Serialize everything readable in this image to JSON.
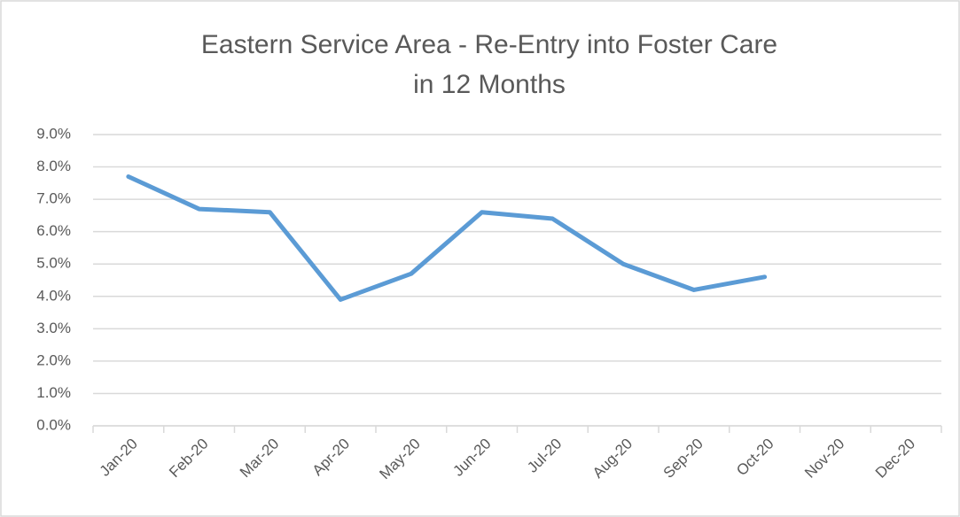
{
  "chart_data": {
    "type": "line",
    "title": [
      "Eastern Service Area - Re-Entry into Foster Care",
      "in 12 Months"
    ],
    "categories": [
      "Jan-20",
      "Feb-20",
      "Mar-20",
      "Apr-20",
      "May-20",
      "Jun-20",
      "Jul-20",
      "Aug-20",
      "Sep-20",
      "Oct-20",
      "Nov-20",
      "Dec-20"
    ],
    "values": [
      7.7,
      6.7,
      6.6,
      3.9,
      4.7,
      6.6,
      6.4,
      5.0,
      4.2,
      4.6,
      null,
      null
    ],
    "color": "#5b9bd5",
    "ylim": [
      0,
      9
    ],
    "yticks": [
      {
        "value": 0,
        "label": "0.0%"
      },
      {
        "value": 1,
        "label": "1.0%"
      },
      {
        "value": 2,
        "label": "2.0%"
      },
      {
        "value": 3,
        "label": "3.0%"
      },
      {
        "value": 4,
        "label": "4.0%"
      },
      {
        "value": 5,
        "label": "5.0%"
      },
      {
        "value": 6,
        "label": "6.0%"
      },
      {
        "value": 7,
        "label": "7.0%"
      },
      {
        "value": 8,
        "label": "8.0%"
      },
      {
        "value": 9,
        "label": "9.0%"
      }
    ],
    "grid": true
  }
}
